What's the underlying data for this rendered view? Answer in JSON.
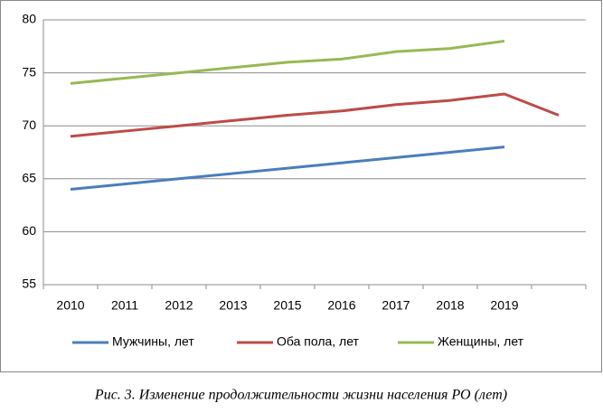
{
  "chart_data": {
    "type": "line",
    "caption": "Рис. 3. Изменение продолжительности жизни населения РО (лет)",
    "categories": [
      "2010",
      "2011",
      "2012",
      "2013",
      "2015",
      "2016",
      "2017",
      "2018",
      "2019",
      null
    ],
    "series": [
      {
        "name": "Мужчины, лет",
        "color": "#4a7ebb",
        "values": [
          64,
          64.5,
          65,
          65.5,
          66,
          66.5,
          67,
          67.5,
          68,
          null
        ]
      },
      {
        "name": "Оба пола, лет",
        "color": "#be4b48",
        "values": [
          69,
          69.5,
          70,
          70.5,
          71,
          71.4,
          72,
          72.4,
          73,
          71
        ]
      },
      {
        "name": "Женщины, лет",
        "color": "#98b954",
        "values": [
          74,
          74.5,
          75,
          75.5,
          76,
          76.3,
          77,
          77.3,
          78,
          null
        ]
      }
    ],
    "ylim": [
      55,
      80
    ],
    "yticks": [
      55,
      60,
      65,
      70,
      75,
      80
    ],
    "grid": true,
    "legend": "bottom"
  }
}
